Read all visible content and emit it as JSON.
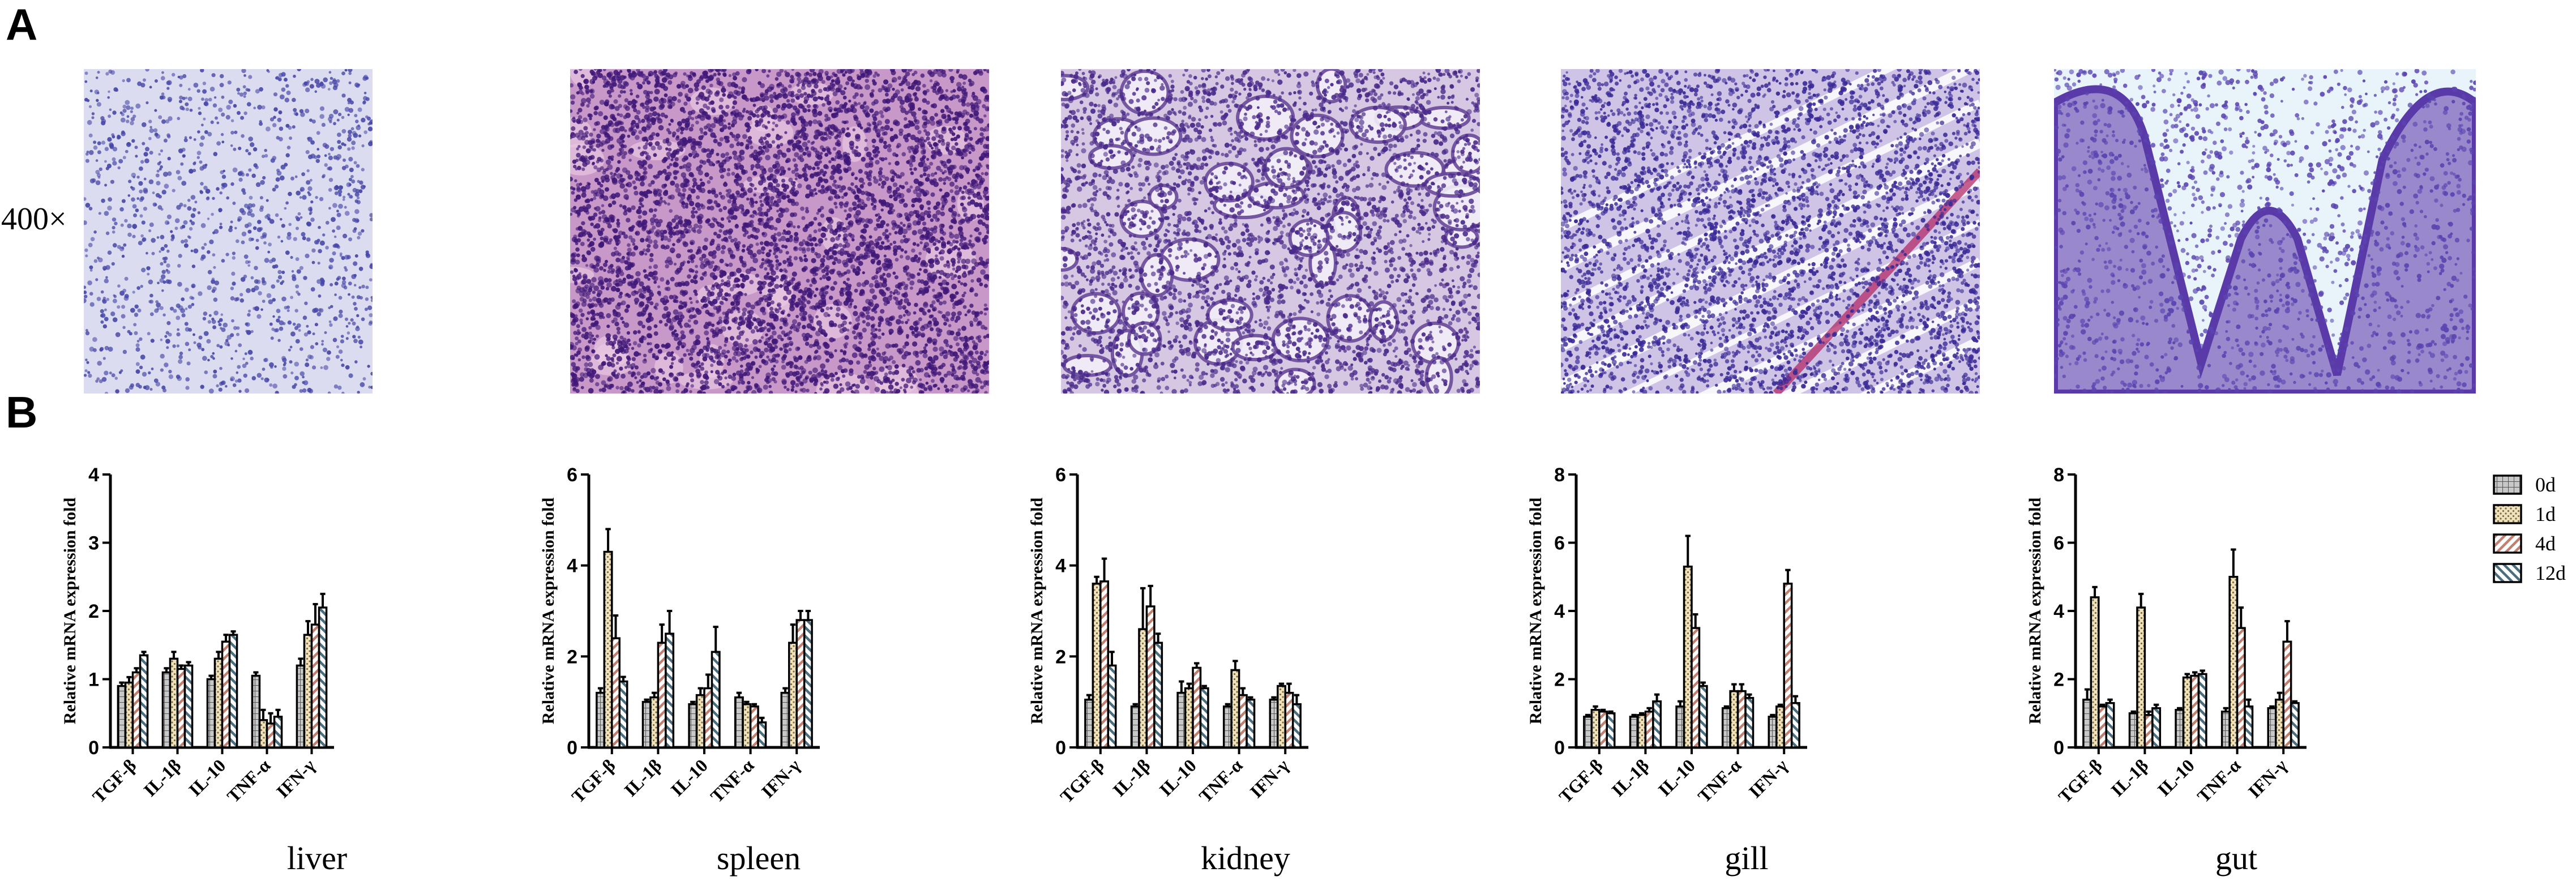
{
  "panel_a": {
    "label": "A",
    "magnification": "400×",
    "images": [
      {
        "tissue": "liver",
        "bg": "#dcdcf0",
        "cell": "#4848a8",
        "density": 1300,
        "cellSize": 3.2,
        "pattern": "sparse"
      },
      {
        "tissue": "spleen",
        "bg": "#c898c8",
        "cell": "#401878",
        "density": 5200,
        "cellSize": 3.6,
        "pattern": "dense"
      },
      {
        "tissue": "kidney",
        "bg": "#d6c8e2",
        "cell": "#4a2a8a",
        "density": 3600,
        "cellSize": 3.4,
        "pattern": "tubules"
      },
      {
        "tissue": "gill",
        "bg": "#cfc4e6",
        "cell": "#3a2a96",
        "density": 4200,
        "cellSize": 3.2,
        "pattern": "lamellae"
      },
      {
        "tissue": "gut",
        "bg": "#e8f4fa",
        "cell": "#5a44b0",
        "density": 1700,
        "cellSize": 3.4,
        "pattern": "villi"
      }
    ]
  },
  "panel_b": {
    "label": "B",
    "legend": {
      "labels": [
        "0d",
        "1d",
        "4d",
        "12d"
      ],
      "patterns": [
        "grid",
        "dots",
        "diag",
        "anti"
      ]
    },
    "colors": {
      "grid_fill": "#c8c8c8",
      "dots_fill": "#f0e2b8",
      "diag_line": "#c08070",
      "anti_line": "#4a6e7e"
    }
  },
  "chart_data": [
    {
      "type": "bar",
      "title": "liver",
      "ylabel": "Relative mRNA expression fold",
      "ylim": [
        0,
        4
      ],
      "yticks": [
        0,
        1,
        2,
        3,
        4
      ],
      "categories": [
        "TGF-β",
        "IL-1β",
        "IL-10",
        "TNF-α",
        "IFN-γ"
      ],
      "series": [
        {
          "name": "0d",
          "values": [
            0.9,
            1.1,
            1.0,
            1.05,
            1.2
          ],
          "errors": [
            0.05,
            0.06,
            0.05,
            0.05,
            0.1
          ]
        },
        {
          "name": "1d",
          "values": [
            0.95,
            1.3,
            1.3,
            0.4,
            1.65
          ],
          "errors": [
            0.08,
            0.1,
            0.1,
            0.15,
            0.2
          ]
        },
        {
          "name": "4d",
          "values": [
            1.1,
            1.15,
            1.55,
            0.35,
            1.8
          ],
          "errors": [
            0.06,
            0.05,
            0.1,
            0.15,
            0.3
          ]
        },
        {
          "name": "12d",
          "values": [
            1.35,
            1.2,
            1.65,
            0.45,
            2.05
          ],
          "errors": [
            0.05,
            0.05,
            0.05,
            0.1,
            0.2
          ]
        }
      ]
    },
    {
      "type": "bar",
      "title": "spleen",
      "ylabel": "Relative mRNA expression fold",
      "ylim": [
        0,
        6
      ],
      "yticks": [
        0,
        2,
        4,
        6
      ],
      "categories": [
        "TGF-β",
        "IL-1β",
        "IL-10",
        "TNF-α",
        "IFN-γ"
      ],
      "series": [
        {
          "name": "0d",
          "values": [
            1.2,
            1.0,
            0.95,
            1.1,
            1.2
          ],
          "errors": [
            0.1,
            0.05,
            0.05,
            0.1,
            0.1
          ]
        },
        {
          "name": "1d",
          "values": [
            4.3,
            1.1,
            1.15,
            0.95,
            2.3
          ],
          "errors": [
            0.5,
            0.1,
            0.15,
            0.05,
            0.4
          ]
        },
        {
          "name": "4d",
          "values": [
            2.4,
            2.3,
            1.3,
            0.9,
            2.8
          ],
          "errors": [
            0.5,
            0.4,
            0.3,
            0.05,
            0.2
          ]
        },
        {
          "name": "12d",
          "values": [
            1.45,
            2.5,
            2.1,
            0.55,
            2.8
          ],
          "errors": [
            0.1,
            0.5,
            0.55,
            0.1,
            0.2
          ]
        }
      ]
    },
    {
      "type": "bar",
      "title": "kidney",
      "ylabel": "Relative mRNA expression fold",
      "ylim": [
        0,
        6
      ],
      "yticks": [
        0,
        2,
        4,
        6
      ],
      "categories": [
        "TGF-β",
        "IL-1β",
        "IL-10",
        "TNF-α",
        "IFN-γ"
      ],
      "series": [
        {
          "name": "0d",
          "values": [
            1.05,
            0.9,
            1.2,
            0.9,
            1.05
          ],
          "errors": [
            0.1,
            0.05,
            0.25,
            0.05,
            0.05
          ]
        },
        {
          "name": "1d",
          "values": [
            3.6,
            2.6,
            1.3,
            1.7,
            1.35
          ],
          "errors": [
            0.15,
            0.9,
            0.1,
            0.2,
            0.05
          ]
        },
        {
          "name": "4d",
          "values": [
            3.65,
            3.1,
            1.75,
            1.15,
            1.2
          ],
          "errors": [
            0.5,
            0.45,
            0.1,
            0.15,
            0.2
          ]
        },
        {
          "name": "12d",
          "values": [
            1.8,
            2.3,
            1.3,
            1.05,
            0.95
          ],
          "errors": [
            0.3,
            0.2,
            0.05,
            0.05,
            0.2
          ]
        }
      ]
    },
    {
      "type": "bar",
      "title": "gill",
      "ylabel": "Relative mRNA expression fold",
      "ylim": [
        0,
        8
      ],
      "yticks": [
        0,
        2,
        4,
        6,
        8
      ],
      "categories": [
        "TGF-β",
        "IL-1β",
        "IL-10",
        "TNF-α",
        "IFN-γ"
      ],
      "series": [
        {
          "name": "0d",
          "values": [
            0.9,
            0.9,
            1.2,
            1.15,
            0.9
          ],
          "errors": [
            0.05,
            0.05,
            0.15,
            0.05,
            0.05
          ]
        },
        {
          "name": "1d",
          "values": [
            1.1,
            0.95,
            5.3,
            1.65,
            1.2
          ],
          "errors": [
            0.1,
            0.05,
            0.9,
            0.2,
            0.05
          ]
        },
        {
          "name": "4d",
          "values": [
            1.05,
            1.05,
            3.5,
            1.65,
            4.8
          ],
          "errors": [
            0.05,
            0.1,
            0.4,
            0.2,
            0.4
          ]
        },
        {
          "name": "12d",
          "values": [
            1.0,
            1.35,
            1.8,
            1.45,
            1.3
          ],
          "errors": [
            0.05,
            0.2,
            0.1,
            0.1,
            0.2
          ]
        }
      ]
    },
    {
      "type": "bar",
      "title": "gut",
      "ylabel": "Relative mRNA expression fold",
      "ylim": [
        0,
        8
      ],
      "yticks": [
        0,
        2,
        4,
        6,
        8
      ],
      "categories": [
        "TGF-β",
        "IL-1β",
        "IL-10",
        "TNF-α",
        "IFN-γ"
      ],
      "series": [
        {
          "name": "0d",
          "values": [
            1.4,
            1.0,
            1.1,
            1.05,
            1.15
          ],
          "errors": [
            0.3,
            0.05,
            0.05,
            0.1,
            0.05
          ]
        },
        {
          "name": "1d",
          "values": [
            4.4,
            4.1,
            2.05,
            5.0,
            1.4
          ],
          "errors": [
            0.3,
            0.4,
            0.1,
            0.8,
            0.2
          ]
        },
        {
          "name": "4d",
          "values": [
            1.2,
            0.95,
            2.1,
            3.5,
            3.1
          ],
          "errors": [
            0.05,
            0.1,
            0.1,
            0.6,
            0.6
          ]
        },
        {
          "name": "12d",
          "values": [
            1.3,
            1.15,
            2.15,
            1.2,
            1.3
          ],
          "errors": [
            0.1,
            0.1,
            0.1,
            0.2,
            0.05
          ]
        }
      ]
    }
  ]
}
